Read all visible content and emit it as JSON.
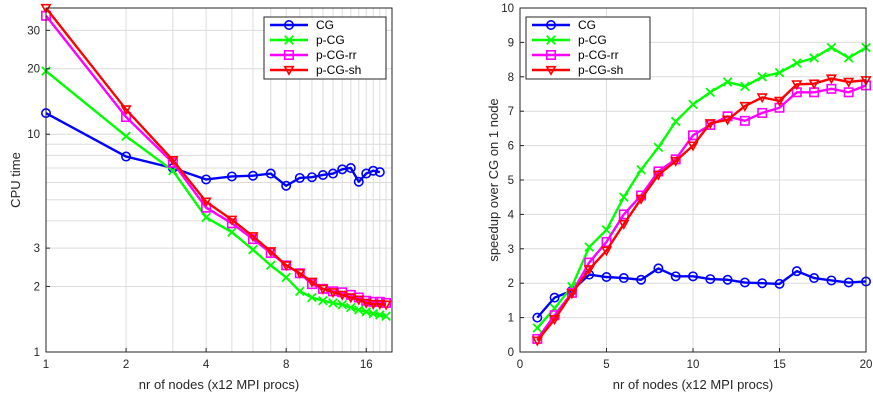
{
  "chart_data": [
    {
      "type": "line",
      "scale": "log-log",
      "title": "",
      "xlabel": "nr of nodes (x12 MPI procs)",
      "ylabel": "CPU time",
      "xlim": [
        1,
        20
      ],
      "ylim": [
        1,
        38
      ],
      "grid": true,
      "legend": "top-right",
      "xticks": [
        1,
        2,
        4,
        8,
        16
      ],
      "yticks": [
        1,
        2,
        3,
        10,
        20,
        30
      ],
      "x": [
        1,
        2,
        3,
        4,
        5,
        6,
        7,
        8,
        9,
        10,
        11,
        12,
        13,
        14,
        15,
        16,
        17,
        18,
        19,
        20
      ],
      "series": [
        {
          "name": "CG",
          "color": "#0000ff",
          "marker": "circle",
          "values": [
            12.5,
            7.9,
            7.0,
            6.2,
            6.4,
            6.45,
            6.6,
            5.8,
            6.3,
            6.35,
            6.5,
            6.6,
            6.9,
            7.0,
            6.05,
            6.6,
            6.8,
            6.7,
            null,
            null
          ]
        },
        {
          "name": "p-CG",
          "color": "#00ff00",
          "marker": "x",
          "values": [
            19.5,
            9.8,
            6.8,
            4.15,
            3.55,
            2.95,
            2.5,
            2.2,
            1.9,
            1.78,
            1.72,
            1.68,
            1.65,
            1.6,
            1.56,
            1.53,
            1.5,
            1.48,
            1.46,
            null
          ]
        },
        {
          "name": "p-CG-rr",
          "color": "#ff00ff",
          "marker": "square",
          "values": [
            35,
            12,
            7.4,
            4.6,
            3.9,
            3.3,
            2.85,
            2.5,
            2.3,
            2.05,
            1.95,
            1.9,
            1.88,
            1.83,
            1.78,
            1.72,
            1.7,
            1.7,
            1.68,
            null
          ]
        },
        {
          "name": "p-CG-sh",
          "color": "#ff0000",
          "marker": "triangle-down",
          "values": [
            38,
            13,
            7.6,
            4.9,
            4.05,
            3.4,
            2.9,
            2.5,
            2.3,
            2.1,
            1.95,
            1.88,
            1.83,
            1.78,
            1.74,
            1.68,
            1.66,
            1.66,
            1.65,
            null
          ]
        }
      ]
    },
    {
      "type": "line",
      "title": "",
      "xlabel": "nr of nodes (x12 MPI procs)",
      "ylabel": "speedup over CG on 1 node",
      "xlim": [
        0,
        20
      ],
      "ylim": [
        0,
        10
      ],
      "grid": true,
      "legend": "top-left",
      "xticks": [
        0,
        5,
        10,
        15,
        20
      ],
      "yticks": [
        0,
        1,
        2,
        3,
        4,
        5,
        6,
        7,
        8,
        9,
        10
      ],
      "x": [
        1,
        2,
        3,
        4,
        5,
        6,
        7,
        8,
        9,
        10,
        11,
        12,
        13,
        14,
        15,
        16,
        17,
        18,
        19,
        20
      ],
      "series": [
        {
          "name": "CG",
          "color": "#0000ff",
          "marker": "circle",
          "values": [
            1.0,
            1.58,
            1.78,
            2.25,
            2.18,
            2.15,
            2.1,
            2.43,
            2.2,
            2.2,
            2.12,
            2.1,
            2.02,
            2.0,
            1.98,
            2.35,
            2.15,
            2.08,
            2.02,
            2.05
          ]
        },
        {
          "name": "p-CG",
          "color": "#00ff00",
          "marker": "x",
          "values": [
            0.7,
            1.27,
            1.9,
            3.05,
            3.55,
            4.5,
            5.3,
            5.95,
            6.7,
            7.2,
            7.55,
            7.85,
            7.72,
            8.0,
            8.12,
            8.4,
            8.55,
            8.85,
            8.55,
            8.85
          ]
        },
        {
          "name": "p-CG-rr",
          "color": "#ff00ff",
          "marker": "square",
          "values": [
            0.38,
            1.07,
            1.72,
            2.6,
            3.2,
            4.0,
            4.55,
            5.25,
            5.6,
            6.3,
            6.6,
            6.85,
            6.72,
            6.95,
            7.1,
            7.55,
            7.55,
            7.65,
            7.55,
            7.75
          ]
        },
        {
          "name": "p-CG-sh",
          "color": "#ff0000",
          "marker": "triangle-down",
          "values": [
            0.33,
            0.95,
            1.7,
            2.4,
            2.95,
            3.72,
            4.45,
            5.15,
            5.55,
            6.0,
            6.65,
            6.75,
            7.15,
            7.4,
            7.3,
            7.78,
            7.8,
            7.95,
            7.85,
            7.9
          ]
        }
      ]
    }
  ]
}
